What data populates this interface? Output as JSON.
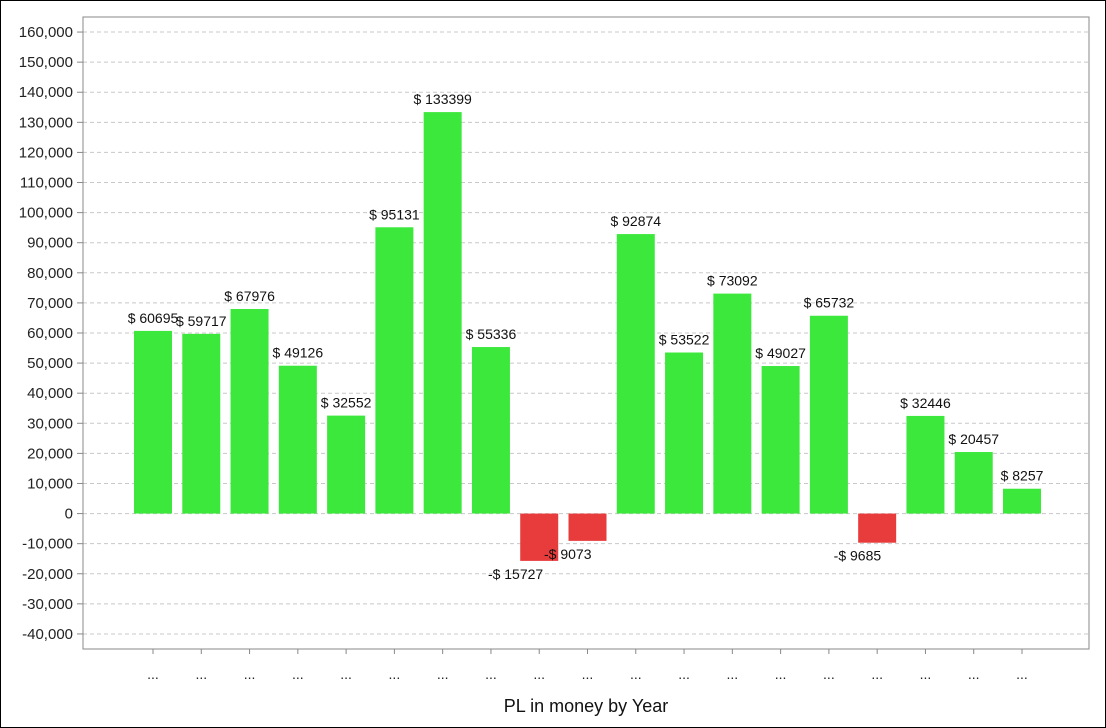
{
  "chart_data": {
    "type": "bar",
    "title": "",
    "xlabel": "PL in money by Year",
    "ylabel": "",
    "ylim": [
      -45000,
      165000
    ],
    "yticks": [
      160000,
      150000,
      140000,
      130000,
      120000,
      110000,
      100000,
      90000,
      80000,
      70000,
      60000,
      50000,
      40000,
      30000,
      20000,
      10000,
      0,
      -10000,
      -20000,
      -30000,
      -40000
    ],
    "ytick_labels": [
      "160,000",
      "150,000",
      "140,000",
      "130,000",
      "120,000",
      "110,000",
      "100,000",
      "90,000",
      "80,000",
      "70,000",
      "60,000",
      "50,000",
      "40,000",
      "30,000",
      "20,000",
      "10,000",
      "0",
      "-10,000",
      "-20,000",
      "-30,000",
      "-40,000"
    ],
    "categories": [
      "...",
      "...",
      "...",
      "...",
      "...",
      "...",
      "...",
      "...",
      "...",
      "...",
      "...",
      "...",
      "...",
      "...",
      "...",
      "...",
      "...",
      "...",
      "..."
    ],
    "values": [
      60695,
      59717,
      67976,
      49126,
      32552,
      95131,
      133399,
      55336,
      -15727,
      -9073,
      92874,
      53522,
      73092,
      49027,
      65732,
      -9685,
      32446,
      20457,
      8257
    ],
    "value_labels": [
      "$ 60695",
      "$ 59717",
      "$ 67976",
      "$ 49126",
      "$ 32552",
      "$ 95131",
      "$ 133399",
      "$ 55336",
      "-$ 15727",
      "-$ 9073",
      "$ 92874",
      "$ 53522",
      "$ 73092",
      "$ 49027",
      "$ 65732",
      "-$ 9685",
      "$ 32446",
      "$ 20457",
      "$ 8257"
    ],
    "grid": true,
    "legend": "none",
    "colors": {
      "positive": "#3de83d",
      "negative": "#e83b3b",
      "grid": "#c8c8c8",
      "axis": "#888888"
    }
  }
}
